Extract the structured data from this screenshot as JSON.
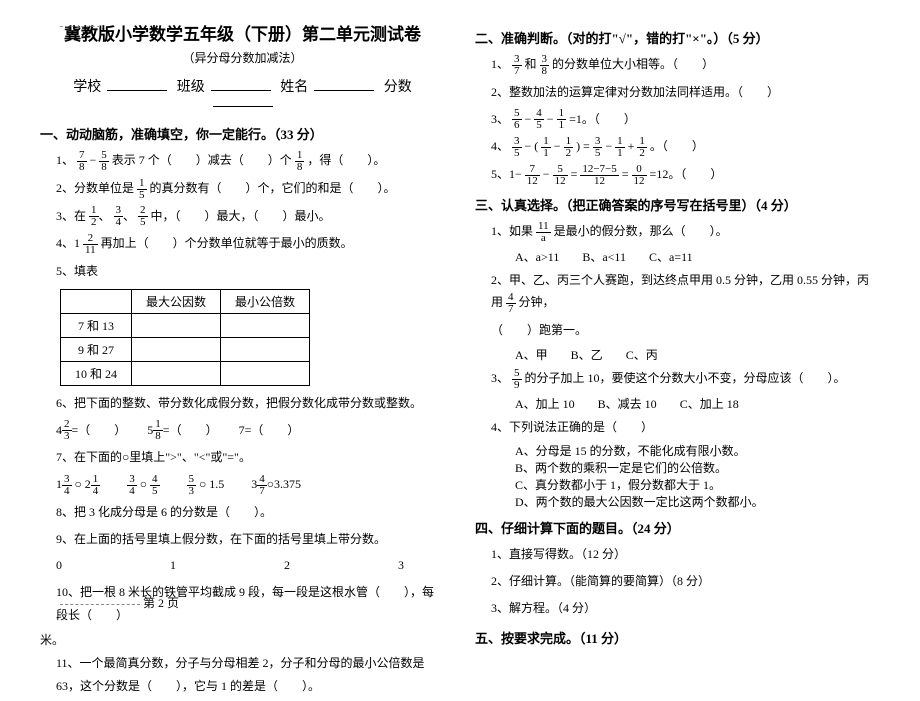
{
  "header": {
    "title": "冀教版小学数学五年级（下册）第二单元测试卷",
    "subtitle": "（异分母分数加减法）",
    "school_label": "学校",
    "class_label": "班级",
    "name_label": "姓名",
    "score_label": "分数"
  },
  "sec1": {
    "head": "一、动动脑筋，准确填空，你一定能行。（33 分）",
    "q1_a": "1、",
    "q1_b": "表示 7 个（　　）减去（　　）个",
    "q1_c": "，得（　　）。",
    "q2": "2、分数单位是",
    "q2b": "的真分数有（　　）个，它们的和是（　　）。",
    "q3": "3、在",
    "q3b": "中，（　　）最大，（　　）最小。",
    "q4": "4、1",
    "q4b": "再加上（　　）个分数单位就等于最小的质数。",
    "q5": "5、填表",
    "th1": "最大公因数",
    "th2": "最小公倍数",
    "r1": "7 和 13",
    "r2": "9 和 27",
    "r3": "10 和 24",
    "q6": "6、把下面的整数、带分数化成假分数，把假分数化成带分数或整数。",
    "q6a": "4",
    "q6eq": "=（　　）",
    "q6b": "5",
    "q6c": "7=（　　）",
    "q7": "7、在下面的○里填上\">\"、\"<\"或\"=\"。",
    "q7a": "1",
    "q7circ": " ○ ",
    "q7b": "2",
    "q7c": " ○ 1.5",
    "q7d": "3",
    "q7e": "○3.375",
    "q8": "8、把 3 化成分母是 6 的分数是（　　）。",
    "q9": "9、在上面的括号里填上假分数，在下面的括号里填上带分数。",
    "q9line": "0　　　　　　　　　1　　　　　　　　　2　　　　　　　　　3",
    "q10": "10、把一根 8 米长的铁管平均截成 9 段，每一段是这根水管（　　），每段长（　　）",
    "q10b": "米。",
    "q11": "11、一个最简真分数，分子与分母相差 2，分子和分母的最小公倍数是 63，这个分数是（　　），它与 1 的差是（　　）。"
  },
  "sec2": {
    "head": "二、准确判断。（对的打\"√\"，错的打\"×\"。）（5 分）",
    "q1a": "1、",
    "q1b": "和",
    "q1c": "的分数单位大小相等。（　　）",
    "q2": "2、整数加法的运算定律对分数加法同样适用。（　　）",
    "q3": "3、",
    "q3b": "=1。（　　）",
    "q4": "4、",
    "q4b": "。（　　）",
    "q5": "5、1−",
    "q5b": "=12。（　　）"
  },
  "sec3": {
    "head": "三、认真选择。（把正确答案的序号写在括号里）（4 分）",
    "q1": "1、如果",
    "q1b": "是最小的假分数，那么（　　）。",
    "q1opts": {
      "a": "A、a>11",
      "b": "B、a<11",
      "c": "C、a=11"
    },
    "q2": "2、甲、乙、丙三个人赛跑，到达终点甲用 0.5 分钟，乙用 0.55 分钟，丙用",
    "q2b": "分钟，",
    "q2c": "（　　）跑第一。",
    "q2opts": {
      "a": "A、甲",
      "b": "B、乙",
      "c": "C、丙"
    },
    "q3": "3、",
    "q3b": "的分子加上 10，要使这个分数大小不变，分母应该（　　）。",
    "q3opts": {
      "a": "A、加上 10",
      "b": "B、减去 10",
      "c": "C、加上 18"
    },
    "q4": "4、下列说法正确的是（　　）",
    "q4a": "A、分母是 15 的分数，不能化成有限小数。",
    "q4b": "B、两个数的乘积一定是它们的公倍数。",
    "q4c": "C、真分数都小于 1，假分数都大于 1。",
    "q4d": "D、两个数的最大公因数一定比这两个数都小。"
  },
  "sec4": {
    "head": "四、仔细计算下面的题目。（24 分）",
    "q1": "1、直接写得数。（12 分）",
    "q2": "2、仔细计算。（能简算的要简算）（8 分）",
    "q3": "3、解方程。（4 分）"
  },
  "sec5": {
    "head": "五、按要求完成。（11 分）"
  },
  "footer": "第 2 页"
}
